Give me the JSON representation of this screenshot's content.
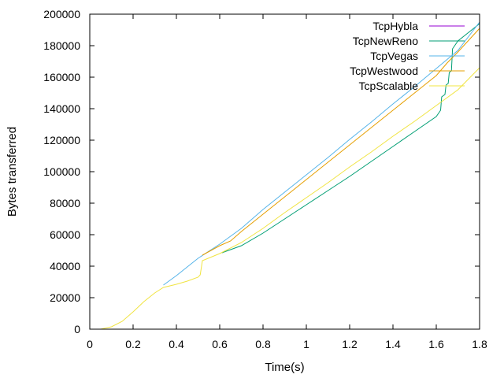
{
  "chart_data": {
    "type": "line",
    "title": "",
    "xlabel": "Time(s)",
    "ylabel": "Bytes transferred",
    "xlim": [
      0,
      1.8
    ],
    "ylim": [
      0,
      200000
    ],
    "xticks": [
      "0",
      "0.2",
      "0.4",
      "0.6",
      "0.8",
      "1",
      "1.2",
      "1.4",
      "1.6",
      "1.8"
    ],
    "yticks": [
      "0",
      "20000",
      "40000",
      "60000",
      "80000",
      "100000",
      "120000",
      "140000",
      "160000",
      "180000",
      "200000"
    ],
    "grid": false,
    "legend_position": "top-right",
    "series": [
      {
        "name": "TcpHybla",
        "color": "#9400d3",
        "points": []
      },
      {
        "name": "TcpNewReno",
        "color": "#009e73",
        "points": [
          [
            0.61,
            48500
          ],
          [
            0.7,
            53000
          ],
          [
            0.8,
            61000
          ],
          [
            0.9,
            70000
          ],
          [
            1.0,
            79000
          ],
          [
            1.1,
            88000
          ],
          [
            1.2,
            97000
          ],
          [
            1.3,
            106500
          ],
          [
            1.4,
            116000
          ],
          [
            1.5,
            125500
          ],
          [
            1.6,
            135000
          ],
          [
            1.62,
            139000
          ],
          [
            1.625,
            147500
          ],
          [
            1.64,
            149000
          ],
          [
            1.645,
            155000
          ],
          [
            1.655,
            156000
          ],
          [
            1.66,
            163000
          ],
          [
            1.67,
            164000
          ],
          [
            1.675,
            178000
          ],
          [
            1.7,
            183000
          ],
          [
            1.75,
            188500
          ],
          [
            1.8,
            194000
          ]
        ]
      },
      {
        "name": "TcpVegas",
        "color": "#56b4e9",
        "points": [
          [
            0.34,
            28000
          ],
          [
            0.4,
            34000
          ],
          [
            0.5,
            45000
          ],
          [
            0.6,
            54000
          ],
          [
            0.7,
            64000
          ],
          [
            0.8,
            76000
          ],
          [
            0.9,
            87000
          ],
          [
            1.0,
            98000
          ],
          [
            1.1,
            109000
          ],
          [
            1.2,
            120500
          ],
          [
            1.3,
            131500
          ],
          [
            1.4,
            143000
          ],
          [
            1.5,
            154000
          ],
          [
            1.6,
            165500
          ],
          [
            1.7,
            177000
          ],
          [
            1.8,
            195000
          ]
        ]
      },
      {
        "name": "TcpWestwood",
        "color": "#e69f00",
        "points": [
          [
            0.52,
            47000
          ],
          [
            0.6,
            53000
          ],
          [
            0.65,
            56000
          ],
          [
            0.7,
            62000
          ],
          [
            0.8,
            73000
          ],
          [
            0.9,
            84000
          ],
          [
            1.0,
            95000
          ],
          [
            1.1,
            106000
          ],
          [
            1.2,
            117000
          ],
          [
            1.3,
            128000
          ],
          [
            1.4,
            139000
          ],
          [
            1.5,
            150000
          ],
          [
            1.6,
            161000
          ],
          [
            1.65,
            169000
          ],
          [
            1.7,
            176000
          ],
          [
            1.8,
            191000
          ]
        ]
      },
      {
        "name": "TcpScalable",
        "color": "#f0e442",
        "points": [
          [
            0.05,
            0
          ],
          [
            0.1,
            1500
          ],
          [
            0.15,
            5000
          ],
          [
            0.2,
            11000
          ],
          [
            0.25,
            17500
          ],
          [
            0.3,
            23000
          ],
          [
            0.34,
            26500
          ],
          [
            0.4,
            28500
          ],
          [
            0.45,
            30500
          ],
          [
            0.5,
            33000
          ],
          [
            0.51,
            34500
          ],
          [
            0.52,
            43500
          ],
          [
            0.6,
            48000
          ],
          [
            0.7,
            55000
          ],
          [
            0.8,
            64000
          ],
          [
            0.9,
            74000
          ],
          [
            1.0,
            83500
          ],
          [
            1.1,
            93000
          ],
          [
            1.2,
            103000
          ],
          [
            1.3,
            112500
          ],
          [
            1.4,
            122500
          ],
          [
            1.5,
            132000
          ],
          [
            1.6,
            142000
          ],
          [
            1.7,
            152000
          ],
          [
            1.8,
            166000
          ]
        ]
      }
    ]
  }
}
